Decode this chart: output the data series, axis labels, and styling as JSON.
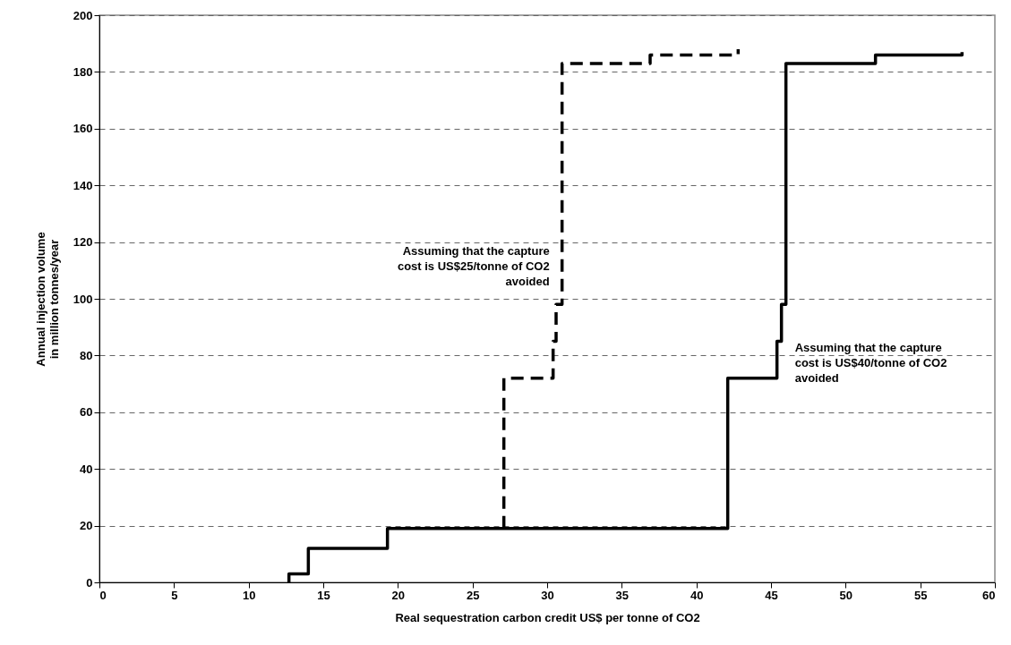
{
  "chart_data": {
    "type": "step",
    "xlabel": "Real sequestration carbon credit US$ per tonne of CO2",
    "ylabel": "Annual injection volume in million tonnes/year",
    "xlim": [
      0,
      60
    ],
    "xticks": [
      0,
      5,
      10,
      15,
      20,
      25,
      30,
      35,
      40,
      45,
      50,
      55,
      60
    ],
    "ylim": [
      0,
      200
    ],
    "yticks": [
      0,
      20,
      40,
      60,
      80,
      100,
      120,
      140,
      160,
      180,
      200
    ],
    "grid": "y",
    "marker": "none",
    "series": [
      {
        "name": "Assuming that the capture cost is US$25/tonne of CO2 avoided",
        "color": "#000000",
        "line_style": "dashed",
        "x": [
          27.1,
          27.1,
          30.4,
          30.6,
          31.0,
          36.9,
          42.8
        ],
        "values": [
          19,
          72,
          85,
          98,
          183,
          186,
          188
        ]
      },
      {
        "name": "Assuming that the capture cost is US$40/tonne of CO2 avoided",
        "color": "#000000",
        "line_style": "solid",
        "x": [
          12.7,
          12.7,
          14,
          19.3,
          42.1,
          45.4,
          45.7,
          46,
          52,
          57.8
        ],
        "values": [
          0,
          3,
          12,
          19,
          72,
          85,
          98,
          183,
          186,
          187
        ]
      }
    ]
  }
}
